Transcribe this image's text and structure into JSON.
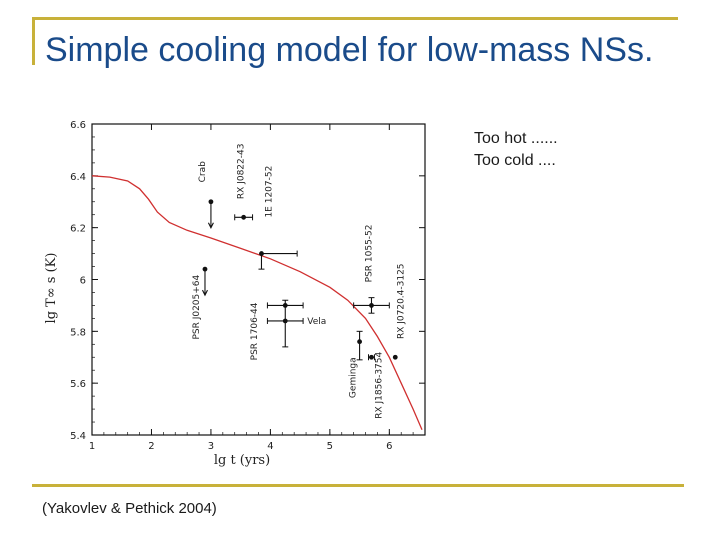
{
  "slide": {
    "title": "Simple cooling model for low-mass NSs.",
    "notes": [
      "Too hot ......",
      "Too cold ...."
    ],
    "citation": "(Yakovlev & Pethick 2004)"
  },
  "colors": {
    "title": "#1a4b8a",
    "accent": "#c8b13a",
    "curve": "#d03030",
    "data": "#111111"
  },
  "chart_data": {
    "type": "scatter",
    "title": "",
    "xlabel": "lg t (yrs)",
    "ylabel": "lg T∞ s (K)",
    "xlim": [
      1,
      6.6
    ],
    "ylim": [
      5.4,
      6.6
    ],
    "xticks": [
      "1",
      "2",
      "3",
      "4",
      "5",
      "6"
    ],
    "yticks": [
      "5.4",
      "5.6",
      "5.8",
      "6",
      "6.2",
      "6.4",
      "6.6"
    ],
    "grid": false,
    "cooling_curve": {
      "x": [
        1,
        1.3,
        1.6,
        1.8,
        1.95,
        2.1,
        2.3,
        2.6,
        3.0,
        3.5,
        4.0,
        4.5,
        5.0,
        5.3,
        5.6,
        5.8,
        6.0,
        6.2,
        6.4,
        6.55
      ],
      "y": [
        6.4,
        6.395,
        6.38,
        6.35,
        6.31,
        6.26,
        6.22,
        6.19,
        6.16,
        6.12,
        6.08,
        6.03,
        5.97,
        5.92,
        5.85,
        5.78,
        5.7,
        5.6,
        5.5,
        5.42
      ]
    },
    "sources": [
      {
        "name": "Crab",
        "x": 3.0,
        "y": 6.3,
        "kind": "upper-limit"
      },
      {
        "name": "RX J0822-43",
        "x": 3.55,
        "y": 6.24,
        "xerr": [
          0.15,
          0.15
        ],
        "yerr": [
          0.0,
          0.0
        ]
      },
      {
        "name": "1E 1207-52",
        "x": 3.85,
        "y": 6.1,
        "xerr": [
          0.0,
          0.6
        ],
        "yerr": [
          0.06,
          0.0
        ]
      },
      {
        "name": "PSR J0205+64",
        "x": 2.9,
        "y": 6.04,
        "kind": "upper-limit"
      },
      {
        "name": "PSR 1706-44",
        "x": 4.25,
        "y": 5.9,
        "xerr": [
          0.3,
          0.3
        ],
        "yerr": [
          0.0,
          0.0
        ]
      },
      {
        "name": "Vela",
        "x": 4.25,
        "y": 5.84,
        "xerr": [
          0.3,
          0.3
        ],
        "yerr": [
          0.1,
          0.08
        ]
      },
      {
        "name": "PSR 1055-52",
        "x": 5.7,
        "y": 5.9,
        "xerr": [
          0.3,
          0.3
        ],
        "yerr": [
          0.03,
          0.03
        ]
      },
      {
        "name": "RX J0720.4-3125",
        "x": 6.1,
        "y": 5.7,
        "xerr": [
          0.0,
          0.0
        ],
        "yerr": [
          0.0,
          0.0
        ]
      },
      {
        "name": "Geminga",
        "x": 5.5,
        "y": 5.76,
        "xerr": [
          0.0,
          0.0
        ],
        "yerr": [
          0.07,
          0.04
        ]
      },
      {
        "name": "RX J1856-3754",
        "x": 5.7,
        "y": 5.7,
        "xerr": [
          0.05,
          0.05
        ],
        "yerr": [
          0.0,
          0.0
        ]
      }
    ]
  }
}
